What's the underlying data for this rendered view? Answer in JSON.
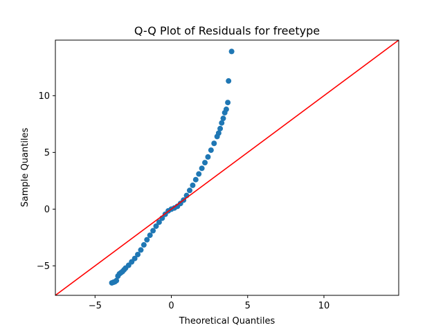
{
  "chart_data": {
    "type": "scatter",
    "title": "Q-Q Plot of Residuals for freetype",
    "xlabel": "Theoretical Quantiles",
    "ylabel": "Sample Quantiles",
    "xlim": [
      -7.6,
      14.9
    ],
    "ylim": [
      -7.6,
      14.9
    ],
    "xticks": [
      -5,
      0,
      5,
      10
    ],
    "yticks": [
      -5,
      0,
      5,
      10
    ],
    "grid": false,
    "point_color": "#1f77b4",
    "reference_line": {
      "type": "45-degree",
      "color": "#ff0000",
      "points": [
        [
          -7.6,
          -7.6
        ],
        [
          14.9,
          14.9
        ]
      ]
    },
    "series": [
      {
        "points": [
          [
            -3.9,
            -6.5
          ],
          [
            -3.8,
            -6.45
          ],
          [
            -3.7,
            -6.4
          ],
          [
            -3.6,
            -6.3
          ],
          [
            -3.5,
            -5.9
          ],
          [
            -3.4,
            -5.7
          ],
          [
            -3.3,
            -5.6
          ],
          [
            -3.2,
            -5.5
          ],
          [
            -3.1,
            -5.35
          ],
          [
            -3.0,
            -5.2
          ],
          [
            -2.8,
            -4.95
          ],
          [
            -2.6,
            -4.65
          ],
          [
            -2.4,
            -4.35
          ],
          [
            -2.2,
            -4.0
          ],
          [
            -2.0,
            -3.6
          ],
          [
            -1.8,
            -3.15
          ],
          [
            -1.6,
            -2.7
          ],
          [
            -1.4,
            -2.3
          ],
          [
            -1.2,
            -1.9
          ],
          [
            -1.0,
            -1.5
          ],
          [
            -0.8,
            -1.15
          ],
          [
            -0.6,
            -0.8
          ],
          [
            -0.4,
            -0.45
          ],
          [
            -0.2,
            -0.15
          ],
          [
            0.0,
            0.0
          ],
          [
            0.2,
            0.1
          ],
          [
            0.4,
            0.25
          ],
          [
            0.6,
            0.5
          ],
          [
            0.8,
            0.8
          ],
          [
            1.0,
            1.2
          ],
          [
            1.2,
            1.65
          ],
          [
            1.4,
            2.1
          ],
          [
            1.6,
            2.6
          ],
          [
            1.8,
            3.1
          ],
          [
            2.0,
            3.6
          ],
          [
            2.2,
            4.1
          ],
          [
            2.4,
            4.6
          ],
          [
            2.6,
            5.2
          ],
          [
            2.8,
            5.8
          ],
          [
            3.0,
            6.4
          ],
          [
            3.1,
            6.7
          ],
          [
            3.2,
            7.1
          ],
          [
            3.3,
            7.6
          ],
          [
            3.4,
            8.0
          ],
          [
            3.5,
            8.5
          ],
          [
            3.6,
            8.8
          ],
          [
            3.7,
            9.4
          ],
          [
            3.75,
            11.3
          ],
          [
            3.95,
            13.9
          ]
        ]
      }
    ]
  }
}
